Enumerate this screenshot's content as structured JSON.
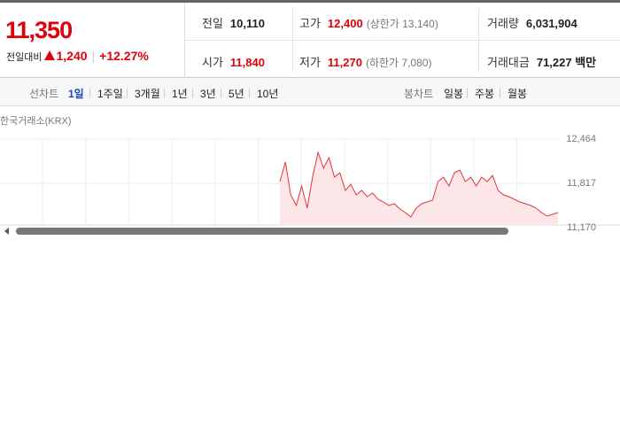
{
  "quote": {
    "price": "11,350",
    "change_label": "전일대비",
    "change": "1,240",
    "change_rate": "+12.27%"
  },
  "stats": [
    {
      "label": "전일",
      "value": "10,110"
    },
    {
      "label": "고가",
      "value": "12,400",
      "note": "(상한가 13,140)"
    },
    {
      "label": "거래량",
      "value": "6,031,904"
    },
    {
      "label": "시가",
      "value": "11,840"
    },
    {
      "label": "저가",
      "value": "11,270",
      "note": "(하한가 7,080)"
    },
    {
      "label": "거래대금",
      "value": "71,227 백만"
    }
  ],
  "toolbar": {
    "line_label": "선차트",
    "line_periods": [
      "1일",
      "1주일",
      "3개월",
      "1년",
      "3년",
      "5년",
      "10년"
    ],
    "candle_label": "봉차트",
    "candle_periods": [
      "일봉",
      "주봉",
      "월봉"
    ]
  },
  "chart": {
    "type": "line",
    "source": "한국거래소(KRX)",
    "color": "#e8333b",
    "values": [
      11843,
      12128,
      11649,
      11493,
      11778,
      11455,
      11908,
      12270,
      12037,
      12192,
      11908,
      11972,
      11713,
      11804,
      11649,
      11713,
      11623,
      11675,
      11584,
      11545,
      11493,
      11519,
      11442,
      11390,
      11325,
      11455,
      11519,
      11545,
      11571,
      11843,
      11908,
      11778,
      11972,
      12011,
      11843,
      11908,
      11778,
      11908,
      11843,
      11933,
      11713,
      11649,
      11623,
      11584,
      11545,
      11519,
      11493,
      11455,
      11390,
      11338,
      11364,
      11390
    ],
    "ylim": [
      11170,
      12464
    ],
    "yticks": [
      {
        "value": 12464,
        "label": "12,464"
      },
      {
        "value": 11817,
        "label": "11,817"
      },
      {
        "value": 11170,
        "label": "11,170"
      }
    ]
  }
}
